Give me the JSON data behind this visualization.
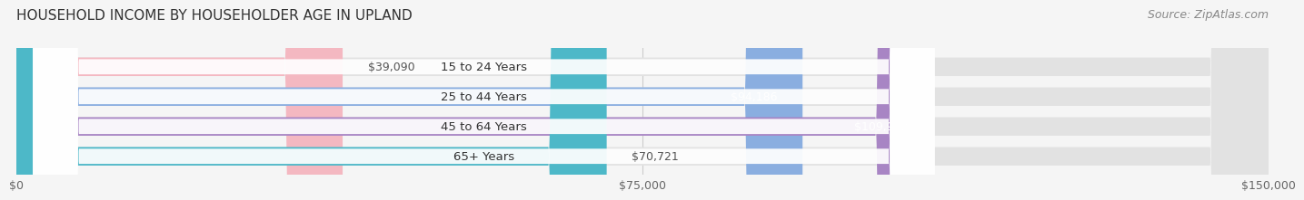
{
  "title": "HOUSEHOLD INCOME BY HOUSEHOLDER AGE IN UPLAND",
  "source": "Source: ZipAtlas.com",
  "categories": [
    "15 to 24 Years",
    "25 to 44 Years",
    "45 to 64 Years",
    "65+ Years"
  ],
  "values": [
    39090,
    94186,
    109902,
    70721
  ],
  "bar_colors": [
    "#f4b8c1",
    "#8aaee0",
    "#a885c4",
    "#4db8c8"
  ],
  "value_labels": [
    "$39,090",
    "$94,186",
    "$109,902",
    "$70,721"
  ],
  "value_label_colors": [
    "#555555",
    "#ffffff",
    "#ffffff",
    "#555555"
  ],
  "background_color": "#f5f5f5",
  "bar_bg_color": "#e2e2e2",
  "xlim": [
    0,
    150000
  ],
  "xticks": [
    0,
    75000,
    150000
  ],
  "xticklabels": [
    "$0",
    "$75,000",
    "$150,000"
  ],
  "title_fontsize": 11,
  "source_fontsize": 9,
  "bar_height": 0.62
}
